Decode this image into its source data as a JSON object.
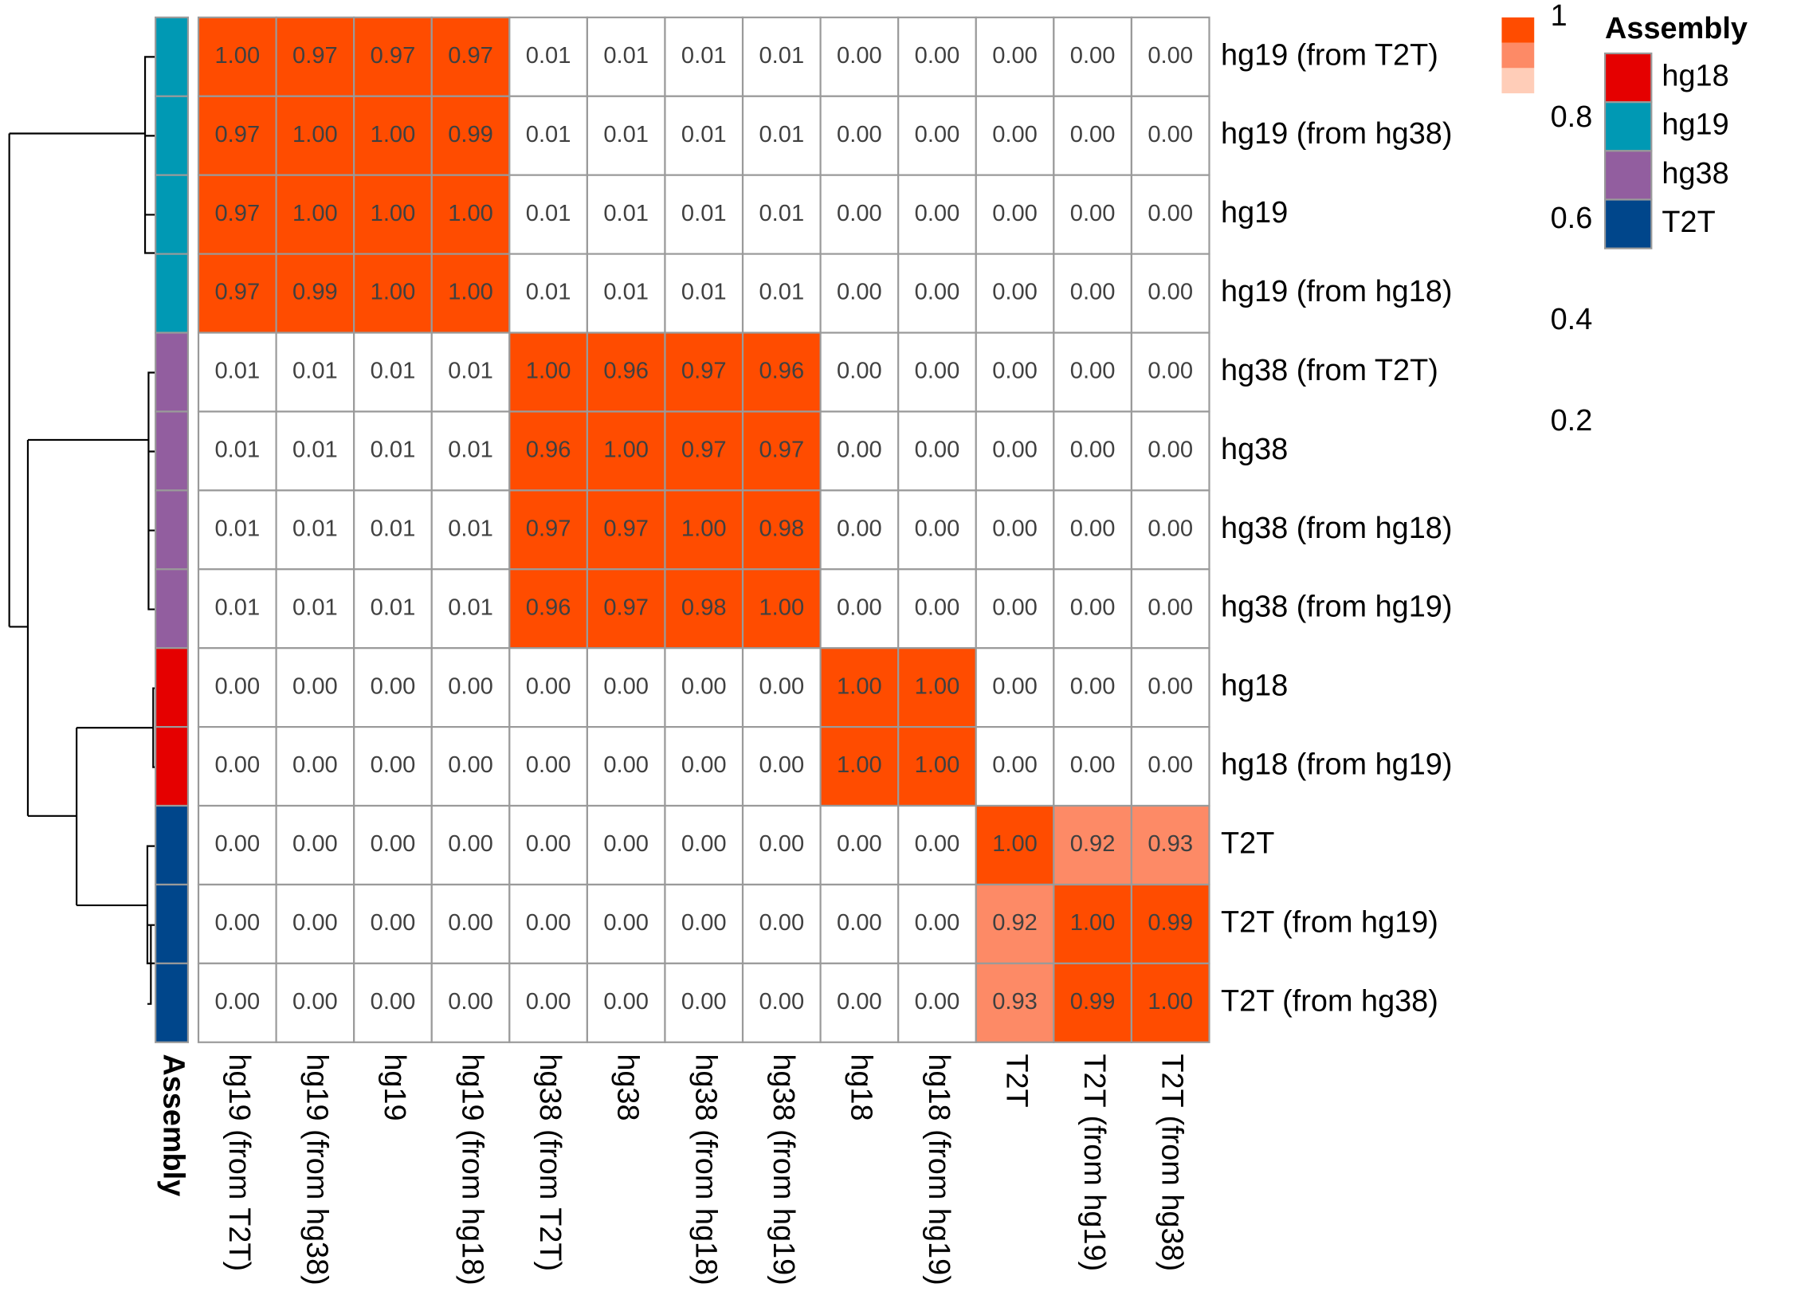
{
  "chart_data": {
    "type": "heatmap",
    "rows": [
      "hg19 (from T2T)",
      "hg19 (from hg38)",
      "hg19",
      "hg19 (from hg18)",
      "hg38 (from T2T)",
      "hg38",
      "hg38 (from hg18)",
      "hg38 (from hg19)",
      "hg18",
      "hg18 (from hg19)",
      "T2T",
      "T2T (from hg19)",
      "T2T (from hg38)"
    ],
    "columns": [
      "hg19 (from T2T)",
      "hg19 (from hg38)",
      "hg19",
      "hg19 (from hg18)",
      "hg38 (from T2T)",
      "hg38",
      "hg38 (from hg18)",
      "hg38 (from hg19)",
      "hg18",
      "hg18 (from hg19)",
      "T2T",
      "T2T (from hg19)",
      "T2T (from hg38)"
    ],
    "values": [
      [
        1,
        0.97,
        0.97,
        0.97,
        0.01,
        0.01,
        0.01,
        0.01,
        0,
        0,
        0,
        0,
        0
      ],
      [
        0.97,
        1,
        1,
        0.99,
        0.01,
        0.01,
        0.01,
        0.01,
        0,
        0,
        0,
        0,
        0
      ],
      [
        0.97,
        1,
        1,
        1,
        0.01,
        0.01,
        0.01,
        0.01,
        0,
        0,
        0,
        0,
        0
      ],
      [
        0.97,
        0.99,
        1,
        1,
        0.01,
        0.01,
        0.01,
        0.01,
        0,
        0,
        0,
        0,
        0
      ],
      [
        0.01,
        0.01,
        0.01,
        0.01,
        1,
        0.96,
        0.97,
        0.96,
        0,
        0,
        0,
        0,
        0
      ],
      [
        0.01,
        0.01,
        0.01,
        0.01,
        0.96,
        1,
        0.97,
        0.97,
        0,
        0,
        0,
        0,
        0
      ],
      [
        0.01,
        0.01,
        0.01,
        0.01,
        0.97,
        0.97,
        1,
        0.98,
        0,
        0,
        0,
        0,
        0
      ],
      [
        0.01,
        0.01,
        0.01,
        0.01,
        0.96,
        0.97,
        0.98,
        1,
        0,
        0,
        0,
        0,
        0
      ],
      [
        0,
        0,
        0,
        0,
        0,
        0,
        0,
        0,
        1,
        1,
        0,
        0,
        0
      ],
      [
        0,
        0,
        0,
        0,
        0,
        0,
        0,
        0,
        1,
        1,
        0,
        0,
        0
      ],
      [
        0,
        0,
        0,
        0,
        0,
        0,
        0,
        0,
        0,
        0,
        1,
        0.92,
        0.93
      ],
      [
        0,
        0,
        0,
        0,
        0,
        0,
        0,
        0,
        0,
        0,
        0.92,
        1,
        0.99
      ],
      [
        0,
        0,
        0,
        0,
        0,
        0,
        0,
        0,
        0,
        0,
        0.93,
        0.99,
        1
      ]
    ],
    "value_labels": [
      [
        "1.00",
        "0.97",
        "0.97",
        "0.97",
        "0.01",
        "0.01",
        "0.01",
        "0.01",
        "0.00",
        "0.00",
        "0.00",
        "0.00",
        "0.00"
      ],
      [
        "0.97",
        "1.00",
        "1.00",
        "0.99",
        "0.01",
        "0.01",
        "0.01",
        "0.01",
        "0.00",
        "0.00",
        "0.00",
        "0.00",
        "0.00"
      ],
      [
        "0.97",
        "1.00",
        "1.00",
        "1.00",
        "0.01",
        "0.01",
        "0.01",
        "0.01",
        "0.00",
        "0.00",
        "0.00",
        "0.00",
        "0.00"
      ],
      [
        "0.97",
        "0.99",
        "1.00",
        "1.00",
        "0.01",
        "0.01",
        "0.01",
        "0.01",
        "0.00",
        "0.00",
        "0.00",
        "0.00",
        "0.00"
      ],
      [
        "0.01",
        "0.01",
        "0.01",
        "0.01",
        "1.00",
        "0.96",
        "0.97",
        "0.96",
        "0.00",
        "0.00",
        "0.00",
        "0.00",
        "0.00"
      ],
      [
        "0.01",
        "0.01",
        "0.01",
        "0.01",
        "0.96",
        "1.00",
        "0.97",
        "0.97",
        "0.00",
        "0.00",
        "0.00",
        "0.00",
        "0.00"
      ],
      [
        "0.01",
        "0.01",
        "0.01",
        "0.01",
        "0.97",
        "0.97",
        "1.00",
        "0.98",
        "0.00",
        "0.00",
        "0.00",
        "0.00",
        "0.00"
      ],
      [
        "0.01",
        "0.01",
        "0.01",
        "0.01",
        "0.96",
        "0.97",
        "0.98",
        "1.00",
        "0.00",
        "0.00",
        "0.00",
        "0.00",
        "0.00"
      ],
      [
        "0.00",
        "0.00",
        "0.00",
        "0.00",
        "0.00",
        "0.00",
        "0.00",
        "0.00",
        "1.00",
        "1.00",
        "0.00",
        "0.00",
        "0.00"
      ],
      [
        "0.00",
        "0.00",
        "0.00",
        "0.00",
        "0.00",
        "0.00",
        "0.00",
        "0.00",
        "1.00",
        "1.00",
        "0.00",
        "0.00",
        "0.00"
      ],
      [
        "0.00",
        "0.00",
        "0.00",
        "0.00",
        "0.00",
        "0.00",
        "0.00",
        "0.00",
        "0.00",
        "0.00",
        "1.00",
        "0.92",
        "0.93"
      ],
      [
        "0.00",
        "0.00",
        "0.00",
        "0.00",
        "0.00",
        "0.00",
        "0.00",
        "0.00",
        "0.00",
        "0.00",
        "0.92",
        "1.00",
        "0.99"
      ],
      [
        "0.00",
        "0.00",
        "0.00",
        "0.00",
        "0.00",
        "0.00",
        "0.00",
        "0.00",
        "0.00",
        "0.00",
        "0.93",
        "0.99",
        "1.00"
      ]
    ],
    "color_breaks": [
      0.85,
      0.9,
      0.95,
      1
    ],
    "colors": [
      "#ffcdb8",
      "#fd8a66",
      "#ff4c00"
    ],
    "colorbar_ticks": [
      1,
      0.8,
      0.6,
      0.4,
      0.2
    ],
    "colorbar_lim": [
      0,
      1
    ],
    "annotation_title": "Assembly",
    "row_groups": [
      "hg19",
      "hg19",
      "hg19",
      "hg19",
      "hg38",
      "hg38",
      "hg38",
      "hg38",
      "hg18",
      "hg18",
      "T2T",
      "T2T",
      "T2T"
    ],
    "groups": [
      {
        "name": "hg18",
        "color": "#e50000"
      },
      {
        "name": "hg19",
        "color": "#0099b4"
      },
      {
        "name": "hg38",
        "color": "#925e9f"
      },
      {
        "name": "T2T",
        "color": "#00468b"
      }
    ]
  }
}
